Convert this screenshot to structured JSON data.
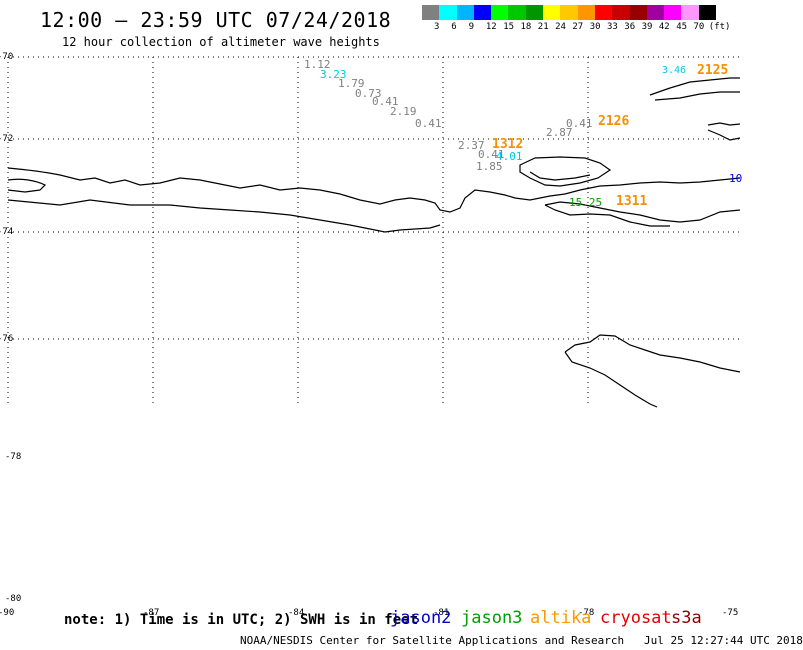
{
  "header": {
    "title": "12:00 – 23:59 UTC 07/24/2018",
    "subtitle": "12 hour collection of altimeter wave heights"
  },
  "colorbar": {
    "colors": [
      "#808080",
      "#00ffff",
      "#00b4ff",
      "#0000ff",
      "#00ff00",
      "#00c800",
      "#009600",
      "#ffff00",
      "#ffc800",
      "#ff9600",
      "#ff0000",
      "#c80000",
      "#960000",
      "#a000a0",
      "#ff00ff",
      "#ff96ff",
      "#000000"
    ],
    "labels": [
      "3",
      "6",
      "9",
      "12",
      "15",
      "18",
      "21",
      "24",
      "27",
      "30",
      "33",
      "36",
      "39",
      "42",
      "45",
      "70"
    ],
    "unit": "(ft)"
  },
  "map": {
    "lat_labels": [
      "-70",
      "-72",
      "-74",
      "-76",
      "-78",
      "-80"
    ],
    "lon_labels": [
      "-90",
      "-87",
      "-84",
      "-81",
      "-78",
      "-75"
    ],
    "wave_values": [
      {
        "text": "1.12",
        "color": "#808080"
      },
      {
        "text": "3.23",
        "color": "#00c8e6"
      },
      {
        "text": "1.79",
        "color": "#808080"
      },
      {
        "text": "0.73",
        "color": "#808080"
      },
      {
        "text": "0.41",
        "color": "#808080"
      },
      {
        "text": "2.19",
        "color": "#808080"
      },
      {
        "text": "0.41",
        "color": "#808080"
      },
      {
        "text": "2.37",
        "color": "#808080"
      },
      {
        "text": "0.41",
        "color": "#808080"
      },
      {
        "text": "4.01",
        "color": "#00c8e6"
      },
      {
        "text": "1.85",
        "color": "#808080"
      },
      {
        "text": "2.87",
        "color": "#808080"
      },
      {
        "text": "0.41",
        "color": "#808080"
      },
      {
        "text": "3.46",
        "color": "#00c8e6"
      },
      {
        "text": "15.25",
        "color": "#00a000"
      },
      {
        "text": "10",
        "color": "#0000ff"
      }
    ],
    "track_labels": [
      "1312",
      "2126",
      "2125",
      "1311"
    ]
  },
  "footer": {
    "note": "note: 1) Time is in UTC; 2) SWH is in feet",
    "legend": [
      {
        "name": "jason2",
        "color": "#0000c8"
      },
      {
        "name": "jason3",
        "color": "#00a000"
      },
      {
        "name": "altika",
        "color": "#ff9600"
      },
      {
        "name": "cryosat",
        "color": "#e60000"
      },
      {
        "name": "s3a",
        "color": "#8b0000"
      }
    ],
    "credit": "NOAA/NESDIS Center for Satellite Applications and Research",
    "timestamp": "Jul 25 12:27:44 UTC 2018"
  }
}
